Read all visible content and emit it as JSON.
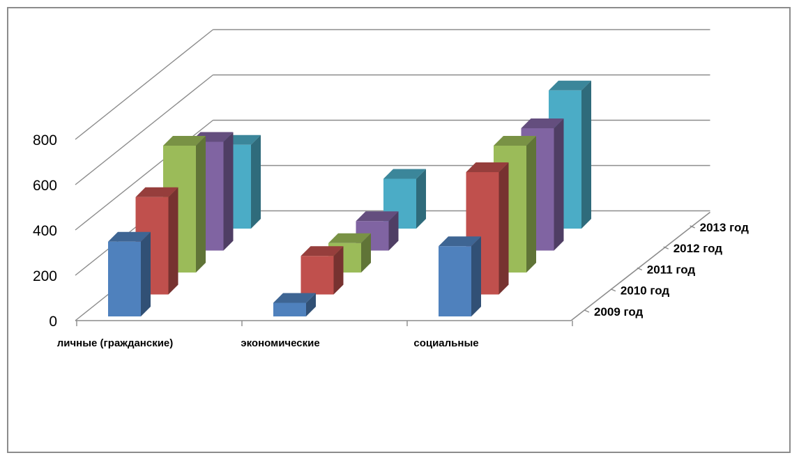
{
  "chart_data": {
    "type": "bar",
    "subtype": "3d-column",
    "categories": [
      "личные (гражданские)",
      "экономические",
      "социальные"
    ],
    "series": [
      {
        "name": "2009 год",
        "values": [
          330,
          60,
          310
        ],
        "color": "#4f81bd"
      },
      {
        "name": "2010 год",
        "values": [
          430,
          170,
          540
        ],
        "color": "#c0504d"
      },
      {
        "name": "2011 год",
        "values": [
          560,
          130,
          560
        ],
        "color": "#9bbb59"
      },
      {
        "name": "2012 год",
        "values": [
          480,
          130,
          540
        ],
        "color": "#8064a2"
      },
      {
        "name": "2013 год",
        "values": [
          370,
          220,
          610
        ],
        "color": "#4bacc6"
      }
    ],
    "yticks": [
      "0",
      "200",
      "400",
      "600",
      "800"
    ],
    "ylim": [
      0,
      800
    ],
    "title": "",
    "xlabel": "",
    "ylabel": "",
    "grid": true,
    "legend": "depth-axis"
  }
}
